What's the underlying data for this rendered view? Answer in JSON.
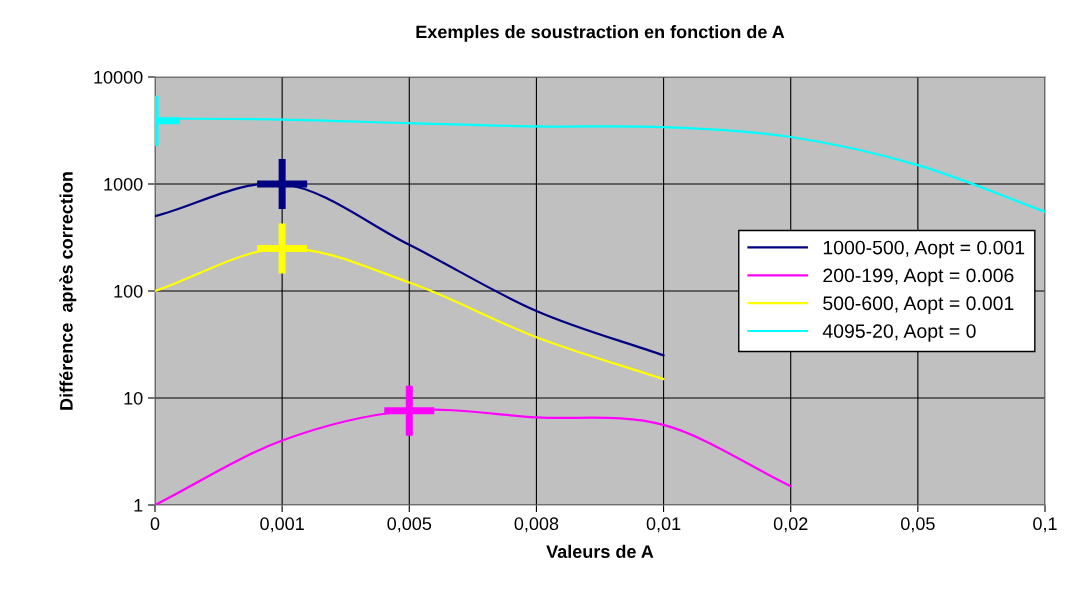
{
  "chart_data": {
    "type": "line",
    "title": "Exemples de soustraction en fonction de A",
    "xlabel": "Valeurs de A",
    "ylabel": "Différence  après correction",
    "categories": [
      "0",
      "0,001",
      "0,005",
      "0,008",
      "0,01",
      "0,02",
      "0,05",
      "0,1"
    ],
    "series": [
      {
        "name": "1000-500, Aopt = 0.001",
        "color": "#000080",
        "values": [
          500,
          1000,
          270,
          65,
          25,
          null,
          null,
          null
        ]
      },
      {
        "name": "200-199, Aopt = 0.006",
        "color": "#ff00ff",
        "values": [
          1,
          4,
          7.6,
          6.6,
          5.6,
          1.5,
          null,
          null
        ]
      },
      {
        "name": "500-600, Aopt = 0.001",
        "color": "#ffff00",
        "values": [
          100,
          250,
          120,
          37,
          15,
          null,
          null,
          null
        ]
      },
      {
        "name": "4095-20, Aopt = 0",
        "color": "#00ffff",
        "values": [
          4095,
          4000,
          3700,
          3450,
          3400,
          2750,
          1500,
          550
        ]
      },
      {
        "type": "scatter",
        "marker": "cross",
        "x": [
          "0,001",
          "0,005",
          "0,001",
          "0"
        ],
        "values": [
          1000,
          7.6,
          250,
          3900
        ],
        "colors": [
          "#000080",
          "#ff00ff",
          "#ffff00",
          "#00ffff"
        ]
      }
    ],
    "log": "y",
    "ylim": [
      1,
      10000
    ],
    "yticks": [
      1,
      10,
      100,
      1000,
      10000
    ],
    "grid": true,
    "legend": "right"
  }
}
